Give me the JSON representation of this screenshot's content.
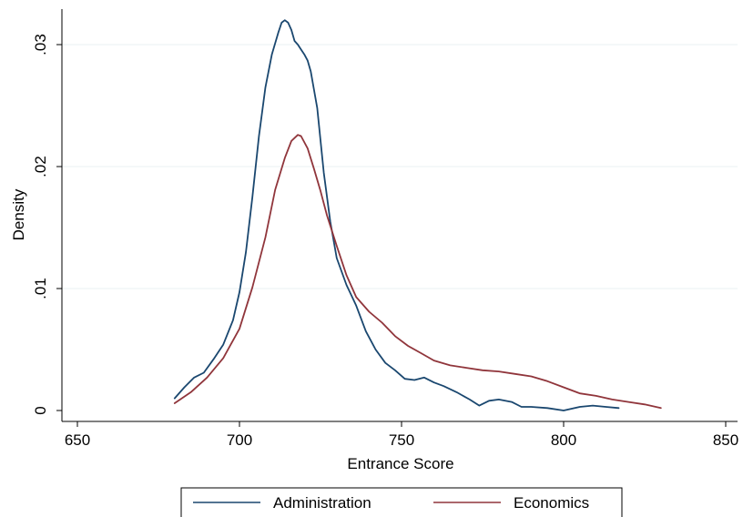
{
  "chart_data": {
    "type": "line",
    "title": "",
    "xlabel": "Entrance Score",
    "ylabel": "Density",
    "xlim": [
      650,
      850
    ],
    "ylim": [
      0,
      0.032
    ],
    "x_ticks": [
      650,
      700,
      750,
      800,
      850
    ],
    "x_tick_labels": [
      "650",
      "700",
      "750",
      "800",
      "850"
    ],
    "y_ticks": [
      0,
      0.01,
      0.02,
      0.03
    ],
    "y_tick_labels": [
      "0",
      ".01",
      ".02",
      ".03"
    ],
    "grid": "horizontal",
    "legend_position": "bottom",
    "series": [
      {
        "name": "Administration",
        "color": "#1a476f",
        "points": [
          [
            680,
            0.001
          ],
          [
            683,
            0.0019
          ],
          [
            686,
            0.0027
          ],
          [
            689,
            0.0031
          ],
          [
            692,
            0.0042
          ],
          [
            695,
            0.0054
          ],
          [
            698,
            0.0074
          ],
          [
            700,
            0.0097
          ],
          [
            702,
            0.013
          ],
          [
            704,
            0.0175
          ],
          [
            706,
            0.0225
          ],
          [
            708,
            0.0265
          ],
          [
            710,
            0.0292
          ],
          [
            712,
            0.031
          ],
          [
            713,
            0.0318
          ],
          [
            714,
            0.032
          ],
          [
            715,
            0.0318
          ],
          [
            716,
            0.0312
          ],
          [
            717,
            0.0303
          ],
          [
            718,
            0.03
          ],
          [
            719,
            0.0296
          ],
          [
            720,
            0.0292
          ],
          [
            721,
            0.0287
          ],
          [
            722,
            0.0278
          ],
          [
            724,
            0.0248
          ],
          [
            726,
            0.0195
          ],
          [
            728,
            0.0155
          ],
          [
            730,
            0.0125
          ],
          [
            733,
            0.0103
          ],
          [
            736,
            0.0086
          ],
          [
            739,
            0.0065
          ],
          [
            742,
            0.005
          ],
          [
            745,
            0.0039
          ],
          [
            748,
            0.0033
          ],
          [
            751,
            0.0026
          ],
          [
            754,
            0.0025
          ],
          [
            757,
            0.0027
          ],
          [
            760,
            0.0023
          ],
          [
            763,
            0.002
          ],
          [
            767,
            0.0015
          ],
          [
            771,
            0.0009
          ],
          [
            774,
            0.0004
          ],
          [
            777,
            0.0008
          ],
          [
            780,
            0.0009
          ],
          [
            784,
            0.0007
          ],
          [
            787,
            0.0003
          ],
          [
            790,
            0.0003
          ],
          [
            795,
            0.0002
          ],
          [
            800,
            0.0
          ],
          [
            805,
            0.0003
          ],
          [
            809,
            0.0004
          ],
          [
            813,
            0.0003
          ],
          [
            817,
            0.0002
          ]
        ]
      },
      {
        "name": "Economics",
        "color": "#90353b",
        "points": [
          [
            680,
            0.0006
          ],
          [
            685,
            0.0015
          ],
          [
            690,
            0.0027
          ],
          [
            695,
            0.0043
          ],
          [
            700,
            0.0067
          ],
          [
            704,
            0.0101
          ],
          [
            708,
            0.0142
          ],
          [
            711,
            0.0181
          ],
          [
            714,
            0.0207
          ],
          [
            716,
            0.0221
          ],
          [
            718,
            0.0226
          ],
          [
            719,
            0.0225
          ],
          [
            721,
            0.0215
          ],
          [
            723,
            0.0198
          ],
          [
            725,
            0.018
          ],
          [
            727,
            0.016
          ],
          [
            730,
            0.0135
          ],
          [
            733,
            0.0111
          ],
          [
            736,
            0.0093
          ],
          [
            740,
            0.0081
          ],
          [
            744,
            0.0072
          ],
          [
            748,
            0.0061
          ],
          [
            752,
            0.0053
          ],
          [
            756,
            0.0047
          ],
          [
            760,
            0.0041
          ],
          [
            765,
            0.0037
          ],
          [
            770,
            0.0035
          ],
          [
            775,
            0.0033
          ],
          [
            780,
            0.0032
          ],
          [
            785,
            0.003
          ],
          [
            790,
            0.0028
          ],
          [
            795,
            0.0024
          ],
          [
            800,
            0.0019
          ],
          [
            805,
            0.0014
          ],
          [
            810,
            0.0012
          ],
          [
            815,
            0.0009
          ],
          [
            820,
            0.0007
          ],
          [
            825,
            0.0005
          ],
          [
            830,
            0.0002
          ]
        ]
      }
    ]
  }
}
